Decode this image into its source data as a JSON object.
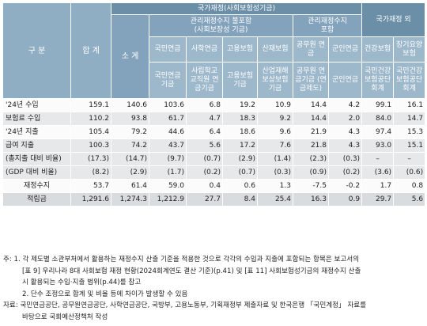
{
  "header": {
    "category": "구 분",
    "total": "합 계",
    "subtotal": "소 계",
    "national_finance": "국가재정(사회보험성기금)",
    "excluded_group": "관리재정수지 불포함",
    "excluded_group_sub": "(사회보장성 기금)",
    "included_group": "관리재정수지",
    "included_group_sub": "포함",
    "outside_group": "국가재정 외",
    "columns": [
      {
        "name": "국민연금",
        "org": "국민연금 기금"
      },
      {
        "name": "사학연금",
        "org": "사립학교 교직원 연금기금"
      },
      {
        "name": "고용보험",
        "org": "고용보험 기금"
      },
      {
        "name": "산재보험",
        "org": "산업재해 보상보험 기금"
      },
      {
        "name": "공무원 연금",
        "org": "공무원 연금기금 (연금제도)"
      },
      {
        "name": "군인연금",
        "org": "군인연금"
      },
      {
        "name": "건강보험",
        "org": "국민건강 보험공단 회계"
      },
      {
        "name": "장기요양 보험",
        "org": "국민건강 보험공단 회계"
      }
    ]
  },
  "rows": [
    {
      "label": "'24년 수입",
      "style": "white",
      "values": [
        "159.1",
        "140.6",
        "103.6",
        "6.8",
        "19.2",
        "10.9",
        "14.4",
        "4.2",
        "99.1",
        "16.1"
      ]
    },
    {
      "label": "보험료 수입",
      "style": "gray",
      "values": [
        "110.2",
        "93.8",
        "61.7",
        "4.7",
        "18.3",
        "9.2",
        "14.4",
        "2.0",
        "84.0",
        "14.7"
      ]
    },
    {
      "label": "'24년 지출",
      "style": "white",
      "values": [
        "105.4",
        "79.2",
        "44.6",
        "6.4",
        "18.6",
        "9.6",
        "21.9",
        "4.3",
        "97.4",
        "15.3"
      ]
    },
    {
      "label": "급여 지출",
      "style": "gray",
      "values": [
        "100.3",
        "74.2",
        "43.7",
        "5.6",
        "17.2",
        "7.6",
        "21.8",
        "4.3",
        "93.0",
        "15.1"
      ]
    },
    {
      "label": "(총지출 대비 비율)",
      "style": "gray",
      "values": [
        "(17.3)",
        "(14.7)",
        "(9.7)",
        "(0.7)",
        "(2.9)",
        "(1.4)",
        "(2.3)",
        "(0.3)",
        "–",
        "–"
      ]
    },
    {
      "label": "(GDP 대비 비율)",
      "style": "gray",
      "values": [
        "(8.2)",
        "(2.9)",
        "(1.7)",
        "(0.2)",
        "(0.7)",
        "(0.3)",
        "(0.9)",
        "(0.2)",
        "(3.6)",
        "(0.6)"
      ]
    },
    {
      "label": "재정수지",
      "style": "white",
      "values": [
        "53.7",
        "61.4",
        "59.0",
        "0.4",
        "0.6",
        "1.3",
        "-7.5",
        "-0.2",
        "1.7",
        "0.8"
      ]
    },
    {
      "label": "적립금",
      "style": "strong",
      "values": [
        "1,291.6",
        "1,274.3",
        "1,212.9",
        "27.7",
        "8.4",
        "25.4",
        "16.3",
        "0.9",
        "29.7",
        "5.6"
      ]
    }
  ],
  "notes": {
    "n1_lines": [
      "주: 1. 각 제도별 소관부처에서 활용하는 재정수지 산출 기준을 적용한 것으로 각각의 수입과 지출에 포함되는 항목은 보고서의",
      "[표 9] 우리나라 8대 사회보험 재정 현황(2024회계연도 결산 기준)(p.41) 및 [표 11] 사회보험성기금의 재정수지 산출",
      "시 활용되는 수입·지출 범위(p.44)를 참고"
    ],
    "n2": "2. 단수 조정으로 합계 및 비율 등에 차이가 발생할 수 있음",
    "source_lines": [
      "자료: 국민연금공단, 공무원연금공단, 사학연금공단, 국방부, 고용노동부, 기획재정부 제출자료 및 한국은행 「국민계정」 자료를",
      "바탕으로 국회예산정책처 작성"
    ]
  }
}
